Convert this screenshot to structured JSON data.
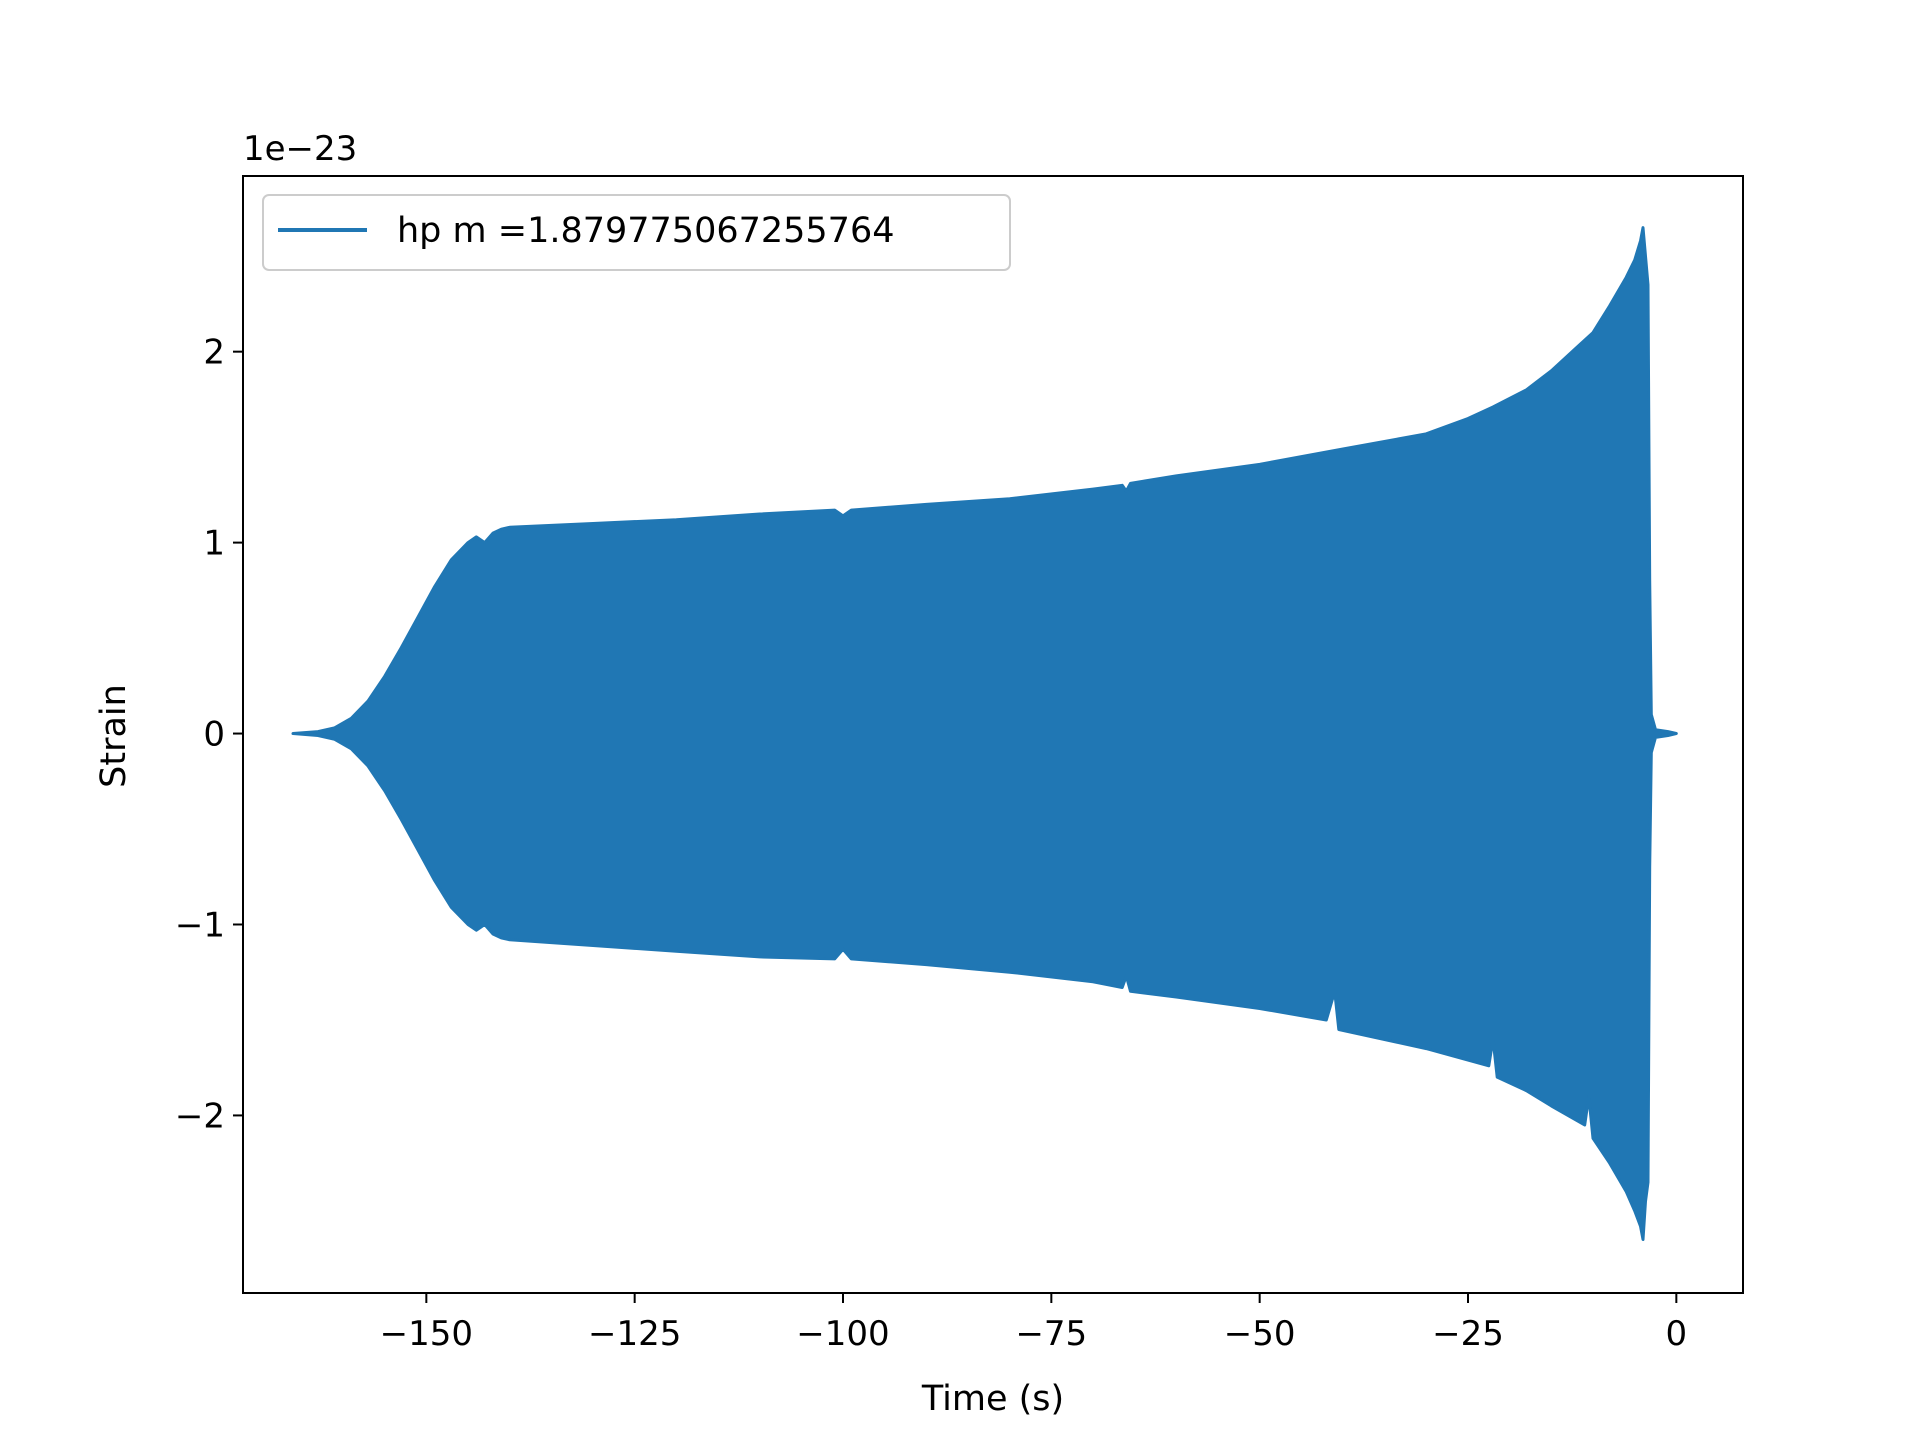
{
  "chart_data": {
    "type": "line",
    "xlabel": "Time (s)",
    "ylabel": "Strain",
    "offset_text": "1e−23",
    "xlim": [
      -172,
      8
    ],
    "ylim": [
      -2.93,
      2.92
    ],
    "y_scale_exponent": -23,
    "grid": false,
    "legend_position": "upper left",
    "x_ticks": [
      {
        "value": -150,
        "label": "−150"
      },
      {
        "value": -125,
        "label": "−125"
      },
      {
        "value": -100,
        "label": "−100"
      },
      {
        "value": -75,
        "label": "−75"
      },
      {
        "value": -50,
        "label": "−50"
      },
      {
        "value": -25,
        "label": "−25"
      },
      {
        "value": 0,
        "label": "0"
      }
    ],
    "y_ticks": [
      {
        "value": -2,
        "label": "−2"
      },
      {
        "value": -1,
        "label": "−1"
      },
      {
        "value": 0,
        "label": "0"
      },
      {
        "value": 1,
        "label": "1"
      },
      {
        "value": 2,
        "label": "2"
      }
    ],
    "series": [
      {
        "name": "hp m =1.879775067255764",
        "color": "#2077b4",
        "envelope_upper": [
          [
            -166,
            0.0
          ],
          [
            -163,
            0.01
          ],
          [
            -161,
            0.03
          ],
          [
            -159,
            0.08
          ],
          [
            -157,
            0.17
          ],
          [
            -155,
            0.3
          ],
          [
            -153,
            0.45
          ],
          [
            -151,
            0.61
          ],
          [
            -149,
            0.77
          ],
          [
            -147,
            0.91
          ],
          [
            -145,
            1.0
          ],
          [
            -144,
            1.03
          ],
          [
            -143,
            1.0
          ],
          [
            -142,
            1.05
          ],
          [
            -141,
            1.07
          ],
          [
            -140,
            1.08
          ],
          [
            -130,
            1.1
          ],
          [
            -120,
            1.12
          ],
          [
            -110,
            1.15
          ],
          [
            -101,
            1.17
          ],
          [
            -100,
            1.14
          ],
          [
            -99,
            1.17
          ],
          [
            -90,
            1.2
          ],
          [
            -80,
            1.23
          ],
          [
            -70,
            1.28
          ],
          [
            -66.5,
            1.3
          ],
          [
            -66,
            1.27
          ],
          [
            -65.5,
            1.31
          ],
          [
            -60,
            1.35
          ],
          [
            -50,
            1.41
          ],
          [
            -40,
            1.49
          ],
          [
            -30,
            1.57
          ],
          [
            -25,
            1.65
          ],
          [
            -22,
            1.71
          ],
          [
            -18,
            1.8
          ],
          [
            -15,
            1.9
          ],
          [
            -12,
            2.02
          ],
          [
            -10,
            2.1
          ],
          [
            -8,
            2.24
          ],
          [
            -6,
            2.39
          ],
          [
            -5,
            2.48
          ],
          [
            -4.3,
            2.58
          ],
          [
            -4.0,
            2.65
          ],
          [
            -3.7,
            2.5
          ],
          [
            -3.4,
            2.35
          ],
          [
            -3.2,
            0.8
          ],
          [
            -3.0,
            0.1
          ],
          [
            -2.5,
            0.02
          ],
          [
            -1,
            0.01
          ],
          [
            0,
            0.0
          ]
        ],
        "envelope_lower": [
          [
            -166,
            0.0
          ],
          [
            -163,
            -0.01
          ],
          [
            -161,
            -0.03
          ],
          [
            -159,
            -0.08
          ],
          [
            -157,
            -0.17
          ],
          [
            -155,
            -0.3
          ],
          [
            -153,
            -0.45
          ],
          [
            -151,
            -0.61
          ],
          [
            -149,
            -0.77
          ],
          [
            -147,
            -0.91
          ],
          [
            -145,
            -1.0
          ],
          [
            -144,
            -1.03
          ],
          [
            -143,
            -1.0
          ],
          [
            -142,
            -1.05
          ],
          [
            -141,
            -1.07
          ],
          [
            -140,
            -1.08
          ],
          [
            -130,
            -1.11
          ],
          [
            -120,
            -1.14
          ],
          [
            -110,
            -1.17
          ],
          [
            -101,
            -1.18
          ],
          [
            -100,
            -1.13
          ],
          [
            -99,
            -1.18
          ],
          [
            -90,
            -1.21
          ],
          [
            -80,
            -1.25
          ],
          [
            -70,
            -1.3
          ],
          [
            -66.5,
            -1.33
          ],
          [
            -66,
            -1.27
          ],
          [
            -65.5,
            -1.35
          ],
          [
            -60,
            -1.38
          ],
          [
            -50,
            -1.44
          ],
          [
            -42,
            -1.5
          ],
          [
            -41,
            -1.35
          ],
          [
            -40.5,
            -1.55
          ],
          [
            -30,
            -1.65
          ],
          [
            -22.5,
            -1.74
          ],
          [
            -22,
            -1.6
          ],
          [
            -21.5,
            -1.8
          ],
          [
            -18,
            -1.87
          ],
          [
            -15,
            -1.95
          ],
          [
            -11,
            -2.05
          ],
          [
            -10.5,
            -1.9
          ],
          [
            -10,
            -2.12
          ],
          [
            -8,
            -2.25
          ],
          [
            -6,
            -2.4
          ],
          [
            -5,
            -2.5
          ],
          [
            -4.3,
            -2.58
          ],
          [
            -4.0,
            -2.65
          ],
          [
            -3.7,
            -2.45
          ],
          [
            -3.4,
            -2.35
          ],
          [
            -3.2,
            -0.7
          ],
          [
            -3.0,
            -0.1
          ],
          [
            -2.5,
            -0.02
          ],
          [
            -1,
            -0.01
          ],
          [
            0,
            0.0
          ]
        ]
      }
    ]
  }
}
